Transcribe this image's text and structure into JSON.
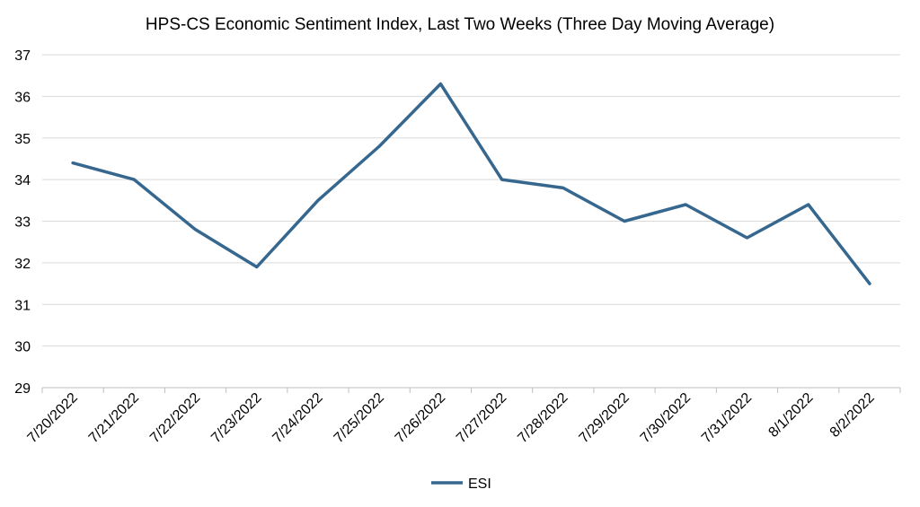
{
  "chart_data": {
    "type": "line",
    "title": "HPS-CS Economic Sentiment Index, Last Two Weeks (Three Day Moving Average)",
    "xlabel": "",
    "ylabel": "",
    "categories": [
      "7/20/2022",
      "7/21/2022",
      "7/22/2022",
      "7/23/2022",
      "7/24/2022",
      "7/25/2022",
      "7/26/2022",
      "7/27/2022",
      "7/28/2022",
      "7/29/2022",
      "7/30/2022",
      "7/31/2022",
      "8/1/2022",
      "8/2/2022"
    ],
    "series": [
      {
        "name": "ESI",
        "color": "#36678f",
        "values": [
          34.4,
          34.0,
          32.8,
          31.9,
          33.5,
          34.8,
          36.3,
          34.0,
          33.8,
          33.0,
          33.4,
          32.6,
          33.4,
          31.5
        ]
      }
    ],
    "ylim": [
      29,
      37
    ],
    "yticks": [
      29,
      30,
      31,
      32,
      33,
      34,
      35,
      36,
      37
    ],
    "grid": true,
    "legend": "bottom"
  }
}
